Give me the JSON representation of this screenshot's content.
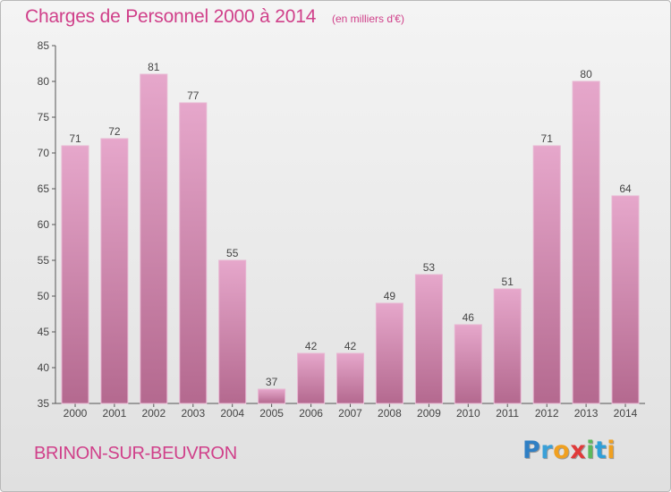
{
  "chart_data": {
    "type": "bar",
    "title": "Charges de Personnel 2000 à 2014",
    "unit": "(en milliers d'€)",
    "categories": [
      "2000",
      "2001",
      "2002",
      "2003",
      "2004",
      "2005",
      "2006",
      "2007",
      "2008",
      "2009",
      "2010",
      "2011",
      "2012",
      "2013",
      "2014"
    ],
    "values": [
      71,
      72,
      81,
      77,
      55,
      37,
      42,
      42,
      49,
      53,
      46,
      51,
      71,
      80,
      64
    ],
    "ylim": [
      35,
      85
    ],
    "yticks": [
      35,
      40,
      45,
      50,
      55,
      60,
      65,
      70,
      75,
      80,
      85
    ],
    "xlabel": "",
    "ylabel": "",
    "grid": false,
    "bar_color_top": "#e6a7cb",
    "bar_color_bottom": "#b4698f"
  },
  "footer": {
    "city": "BRINON-SUR-BEUVRON",
    "logo_letters": [
      {
        "char": "P",
        "color": "#2f7fc4"
      },
      {
        "char": "r",
        "color": "#3aa0d8"
      },
      {
        "char": "o",
        "color": "#f0a020"
      },
      {
        "char": "x",
        "color": "#e03a3a"
      },
      {
        "char": "i",
        "color": "#5cb85c"
      },
      {
        "char": "t",
        "color": "#2f9fd8"
      },
      {
        "char": "i",
        "color": "#f0a020"
      }
    ]
  },
  "colors": {
    "accent": "#d0408a"
  }
}
